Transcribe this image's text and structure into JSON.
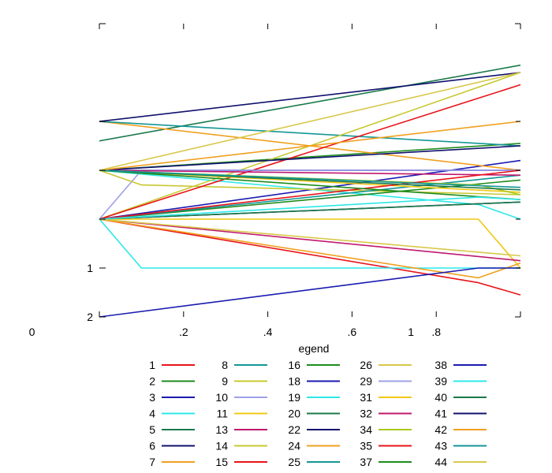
{
  "chart_data": {
    "type": "line",
    "x_ticks": [
      {
        "value": 0,
        "label": ""
      },
      {
        "value": 0.2,
        "label": ".2"
      },
      {
        "value": 0.4,
        "label": ".4"
      },
      {
        "value": 0.6,
        "label": ".6"
      },
      {
        "value": 0.8,
        "label": ".8"
      },
      {
        "value": 1,
        "label": ""
      }
    ],
    "x_stray_labels": [
      {
        "value": -0.16,
        "label": "0"
      },
      {
        "value": 0.74,
        "label": "1"
      }
    ],
    "y_ticks": [
      {
        "value": 2,
        "label": "2"
      },
      {
        "value": 1,
        "label": "1"
      },
      {
        "value": 0,
        "label": ""
      },
      {
        "value": -1,
        "label": ""
      },
      {
        "value": -2,
        "label": ""
      },
      {
        "value": -4,
        "label": ""
      }
    ],
    "xlim": [
      0,
      1
    ],
    "ylim": [
      2,
      -4
    ],
    "legend": {
      "title": "egend",
      "placement": "bottom",
      "columns": 5
    },
    "series": [
      {
        "name": "1",
        "color": "#e8141a",
        "x": [
          0,
          0.9,
          1
        ],
        "y": [
          0,
          1.3,
          1.55
        ]
      },
      {
        "name": "2",
        "color": "#1e8c1e",
        "x": [
          0,
          1
        ],
        "y": [
          -1,
          -1.55
        ]
      },
      {
        "name": "3",
        "color": "#1a1ab0",
        "x": [
          0,
          1
        ],
        "y": [
          0,
          -1.2
        ]
      },
      {
        "name": "4",
        "color": "#2de8e8",
        "x": [
          0,
          0.9,
          1
        ],
        "y": [
          -1,
          -0.3,
          0
        ]
      },
      {
        "name": "5",
        "color": "#1a7a4a",
        "x": [
          0,
          1
        ],
        "y": [
          -1.6,
          -3.15
        ]
      },
      {
        "name": "6",
        "color": "#10106e",
        "x": [
          0,
          1
        ],
        "y": [
          0,
          -0.35
        ]
      },
      {
        "name": "7",
        "color": "#f0a020",
        "x": [
          0,
          1
        ],
        "y": [
          -2,
          -1
        ]
      },
      {
        "name": "8",
        "color": "#149696",
        "x": [
          0,
          1
        ],
        "y": [
          -2,
          -1.5
        ]
      },
      {
        "name": "9",
        "color": "#c8c832",
        "x": [
          0,
          1
        ],
        "y": [
          0,
          -3.0
        ]
      },
      {
        "name": "10",
        "color": "#a0a0e8",
        "x": [
          0,
          0.1,
          1
        ],
        "y": [
          0,
          -1,
          -1
        ]
      },
      {
        "name": "11",
        "color": "#f0c814",
        "x": [
          0,
          0.9,
          1
        ],
        "y": [
          0,
          0,
          1
        ]
      },
      {
        "name": "13",
        "color": "#c0186e",
        "x": [
          0,
          1
        ],
        "y": [
          0,
          0.85
        ]
      },
      {
        "name": "14",
        "color": "#c8c832",
        "x": [
          0,
          0.1,
          1
        ],
        "y": [
          -1,
          -0.7,
          -0.5
        ]
      },
      {
        "name": "15",
        "color": "#e8141a",
        "x": [
          0,
          1
        ],
        "y": [
          0,
          -2.75
        ]
      },
      {
        "name": "16",
        "color": "#1e8c1e",
        "x": [
          0,
          1
        ],
        "y": [
          0,
          -0.8
        ]
      },
      {
        "name": "18",
        "color": "#1a1ab0",
        "x": [
          0,
          0.9,
          1
        ],
        "y": [
          -1,
          -1,
          -1
        ]
      },
      {
        "name": "19",
        "color": "#2de8e8",
        "x": [
          0,
          0.1,
          1
        ],
        "y": [
          0,
          1,
          1
        ]
      },
      {
        "name": "20",
        "color": "#1a7a4a",
        "x": [
          0,
          1
        ],
        "y": [
          0,
          -0.35
        ]
      },
      {
        "name": "22",
        "color": "#10106e",
        "x": [
          0,
          1
        ],
        "y": [
          -2,
          -3
        ]
      },
      {
        "name": "24",
        "color": "#f0a020",
        "x": [
          0,
          0.9,
          1
        ],
        "y": [
          0,
          1.2,
          0.9
        ]
      },
      {
        "name": "25",
        "color": "#149696",
        "x": [
          0,
          1
        ],
        "y": [
          0,
          -0.9
        ]
      },
      {
        "name": "26",
        "color": "#d8c84a",
        "x": [
          0,
          1
        ],
        "y": [
          0,
          0.75
        ]
      },
      {
        "name": "29",
        "color": "#a0a0e8",
        "x": [
          0,
          1
        ],
        "y": [
          -1,
          -1
        ]
      },
      {
        "name": "31",
        "color": "#f0c814",
        "x": [
          0,
          1
        ],
        "y": [
          -1,
          -0.55
        ]
      },
      {
        "name": "32",
        "color": "#c0186e",
        "x": [
          0,
          1
        ],
        "y": [
          -1,
          -0.9
        ]
      },
      {
        "name": "34",
        "color": "#a8c81e",
        "x": [
          0,
          0.9,
          1
        ],
        "y": [
          -1,
          -0.7,
          -0.5
        ]
      },
      {
        "name": "35",
        "color": "#e8141a",
        "x": [
          0,
          1
        ],
        "y": [
          0,
          -1.0
        ]
      },
      {
        "name": "37",
        "color": "#1e8c1e",
        "x": [
          0,
          1
        ],
        "y": [
          -1,
          -0.4
        ]
      },
      {
        "name": "38",
        "color": "#1a1ab0",
        "x": [
          0,
          0.9,
          1
        ],
        "y": [
          2,
          1,
          1
        ]
      },
      {
        "name": "39",
        "color": "#2de8e8",
        "x": [
          0,
          0.9,
          1
        ],
        "y": [
          0,
          -0.45,
          -0.4
        ]
      },
      {
        "name": "40",
        "color": "#1a7a4a",
        "x": [
          0,
          1
        ],
        "y": [
          -1,
          -0.6
        ]
      },
      {
        "name": "41",
        "color": "#10106e",
        "x": [
          0,
          1
        ],
        "y": [
          -1,
          -1.5
        ]
      },
      {
        "name": "42",
        "color": "#f0a020",
        "x": [
          0,
          1
        ],
        "y": [
          -1,
          -2
        ]
      },
      {
        "name": "43",
        "color": "#149696",
        "x": [
          0,
          1
        ],
        "y": [
          -1,
          -0.65
        ]
      },
      {
        "name": "44",
        "color": "#d8c84a",
        "x": [
          0,
          1
        ],
        "y": [
          -1,
          -3
        ]
      }
    ]
  }
}
